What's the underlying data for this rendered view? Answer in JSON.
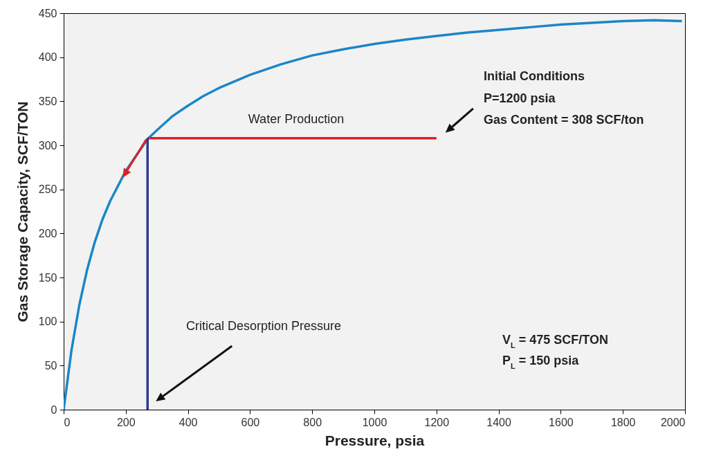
{
  "chart_data": {
    "type": "line",
    "xlabel": "Pressure, psia",
    "ylabel": "Gas Storage Capacity, SCF/TON",
    "xlim": [
      0,
      2000
    ],
    "ylim": [
      0,
      450
    ],
    "xticks": [
      0,
      200,
      400,
      600,
      800,
      {
        "value": 1000,
        "label": "1000"
      },
      {
        "value": 1200,
        "label": "1200"
      },
      {
        "value": 1400,
        "label": "1400"
      },
      {
        "value": 1600,
        "label": "1600"
      },
      {
        "value": 1800,
        "label": "1800"
      },
      {
        "value": 2000,
        "label": "2000"
      }
    ],
    "yticks": [
      0,
      50,
      100,
      150,
      200,
      250,
      300,
      350,
      400,
      450
    ],
    "grid": false,
    "marker": "none",
    "line_style": "solid",
    "series": [
      {
        "color": "#1b86c8",
        "x": [
          0,
          25,
          50,
          75,
          100,
          125,
          150,
          200,
          270,
          300,
          350,
          400,
          450,
          500,
          600,
          700,
          800,
          900,
          1000,
          1100,
          1200,
          1300,
          1400,
          1500,
          1600,
          1700,
          1800,
          1900,
          1990
        ],
        "values": [
          0,
          67,
          118,
          158,
          190,
          216,
          237,
          271,
          307,
          317,
          333,
          345,
          356,
          365,
          380,
          392,
          402,
          409,
          415,
          420,
          424,
          428,
          431,
          434,
          437,
          439,
          441,
          442,
          441
        ]
      },
      {
        "color": "#e31e24",
        "x": [
          270,
          1200
        ],
        "values": [
          308,
          308
        ]
      },
      {
        "color": "#2b3990",
        "x": [
          270,
          270
        ],
        "values": [
          0,
          308
        ]
      }
    ],
    "annotations": [
      "Water Production",
      "Critical Desorption Pressure",
      "Initial Conditions",
      "P=1200 psia",
      "Gas Content = 308 SCF/ton",
      "V$_{L}$ = 475 SCF/TON",
      "P$_{L}$ = 150 psia"
    ]
  }
}
